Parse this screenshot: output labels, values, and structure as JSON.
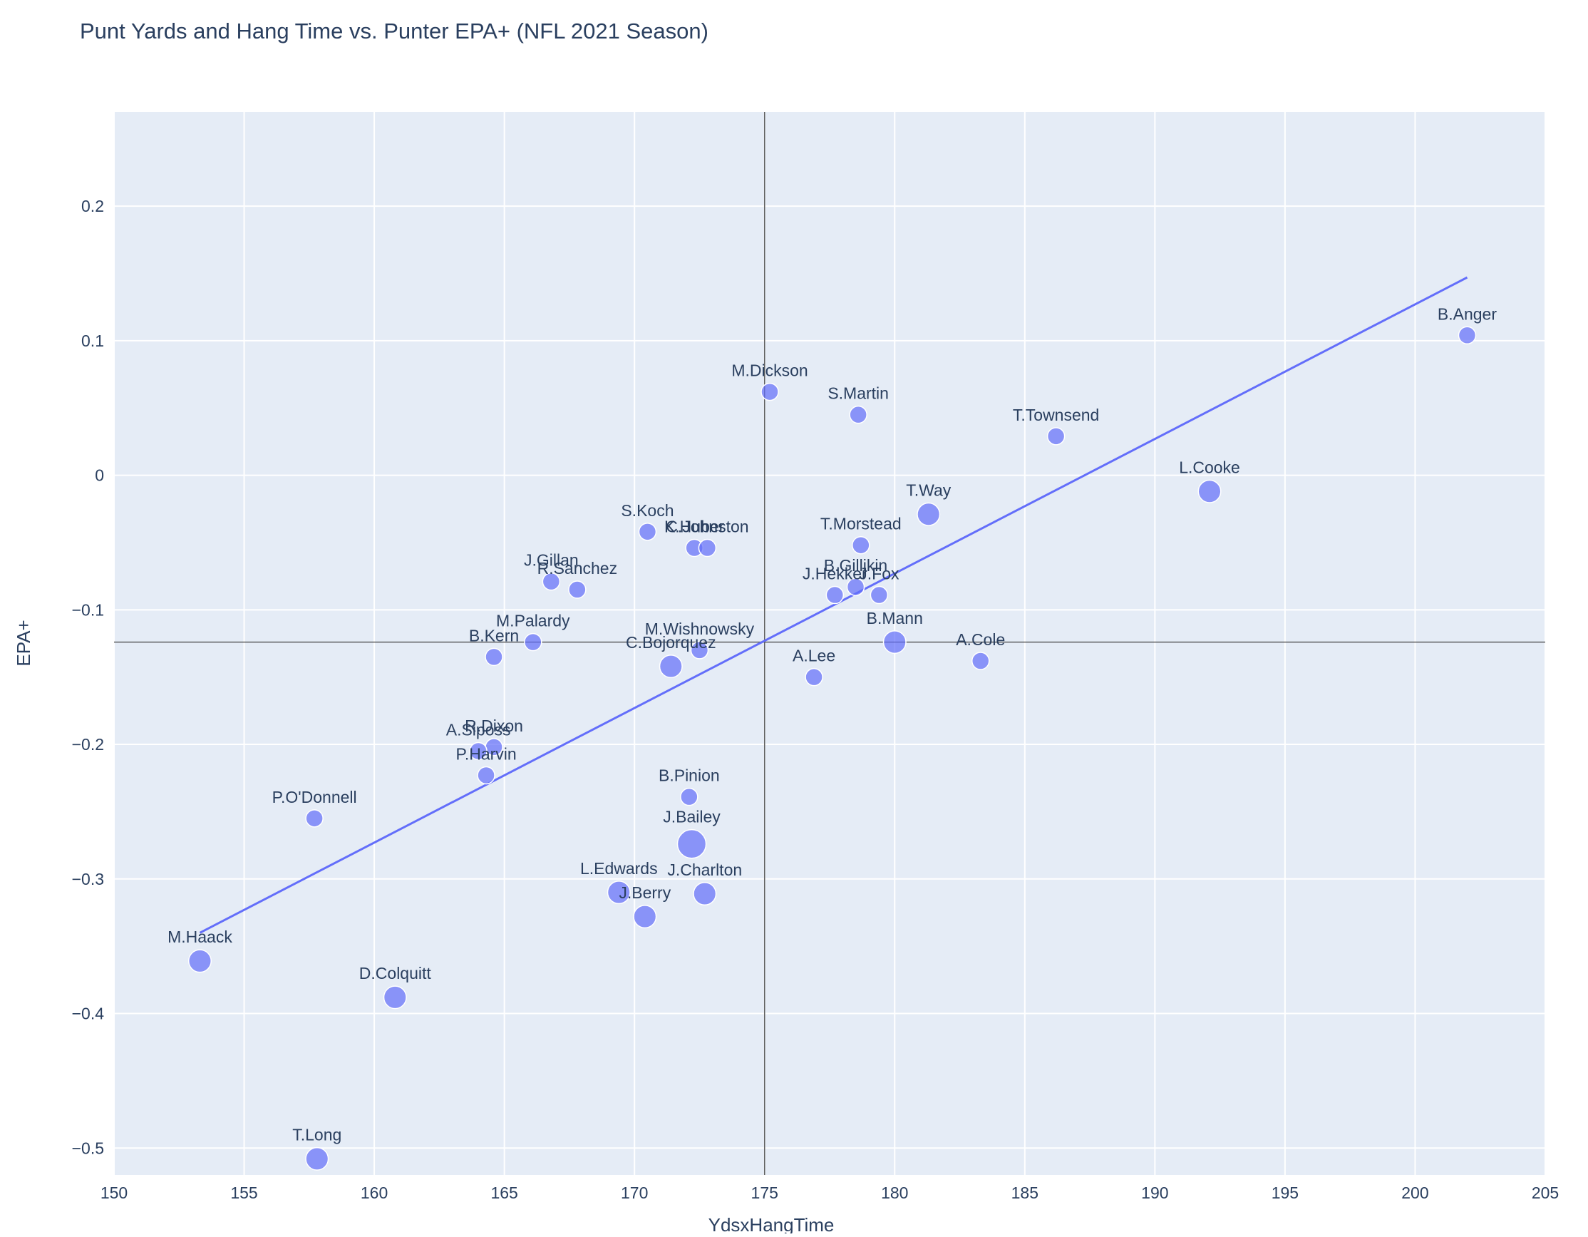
{
  "chart_data": {
    "type": "scatter",
    "title": "Punt Yards and Hang Time vs. Punter EPA+ (NFL 2021 Season)",
    "xlabel": "YdsxHangTime",
    "ylabel": "EPA+",
    "xlim": [
      150,
      205
    ],
    "ylim": [
      -0.52,
      0.27
    ],
    "x_ticks": [
      150,
      155,
      160,
      165,
      170,
      175,
      180,
      185,
      190,
      195,
      200,
      205
    ],
    "x_tick_labels": [
      "150",
      "155",
      "160",
      "165",
      "170",
      "175",
      "180",
      "185",
      "190",
      "195",
      "200",
      "205"
    ],
    "y_ticks": [
      -0.5,
      -0.4,
      -0.3,
      -0.2,
      -0.1,
      0,
      0.1,
      0.2
    ],
    "y_tick_labels": [
      "−0.5",
      "−0.4",
      "−0.3",
      "−0.2",
      "−0.1",
      "0",
      "0.1",
      "0.2"
    ],
    "reference_lines": {
      "x": 175,
      "y": -0.124
    },
    "trendline": {
      "x": [
        153.3,
        202.0
      ],
      "y": [
        -0.34,
        0.147
      ]
    },
    "colors": {
      "plot_bg": "#e5ecf6",
      "marker": "#636efa",
      "marker_opacity": 0.7,
      "marker_outline": "#ffffff",
      "trendline": "#636efa",
      "reference_line": "#444444",
      "text": "#2a3f5f",
      "grid": "#ffffff"
    },
    "points": [
      {
        "name": "B.Anger",
        "x": 202.0,
        "y": 0.104,
        "size": 1.0
      },
      {
        "name": "M.Dickson",
        "x": 175.2,
        "y": 0.062,
        "size": 1.0
      },
      {
        "name": "S.Martin",
        "x": 178.6,
        "y": 0.045,
        "size": 1.0
      },
      {
        "name": "T.Townsend",
        "x": 186.2,
        "y": 0.029,
        "size": 1.0
      },
      {
        "name": "L.Cooke",
        "x": 192.1,
        "y": -0.012,
        "size": 1.8
      },
      {
        "name": "T.Way",
        "x": 181.3,
        "y": -0.029,
        "size": 1.8
      },
      {
        "name": "S.Koch",
        "x": 170.5,
        "y": -0.042,
        "size": 1.0
      },
      {
        "name": "K.Huber",
        "x": 172.3,
        "y": -0.054,
        "size": 1.0
      },
      {
        "name": "C.Johnston",
        "x": 172.8,
        "y": -0.054,
        "size": 1.0
      },
      {
        "name": "T.Morstead",
        "x": 178.7,
        "y": -0.052,
        "size": 1.0
      },
      {
        "name": "J.Gillan",
        "x": 166.8,
        "y": -0.079,
        "size": 1.0
      },
      {
        "name": "R.Sanchez",
        "x": 167.8,
        "y": -0.085,
        "size": 1.0
      },
      {
        "name": "B.Gillikin",
        "x": 178.5,
        "y": -0.083,
        "size": 1.0
      },
      {
        "name": "J.Hekker",
        "x": 177.7,
        "y": -0.089,
        "size": 1.0
      },
      {
        "name": "J.Fox",
        "x": 179.4,
        "y": -0.089,
        "size": 1.0
      },
      {
        "name": "M.Palardy",
        "x": 166.1,
        "y": -0.124,
        "size": 1.0
      },
      {
        "name": "B.Mann",
        "x": 180.0,
        "y": -0.124,
        "size": 1.8
      },
      {
        "name": "B.Kern",
        "x": 164.6,
        "y": -0.135,
        "size": 1.0
      },
      {
        "name": "M.Wishnowsky",
        "x": 172.5,
        "y": -0.13,
        "size": 1.0
      },
      {
        "name": "C.Bojorquez",
        "x": 171.4,
        "y": -0.142,
        "size": 1.8
      },
      {
        "name": "A.Cole",
        "x": 183.3,
        "y": -0.138,
        "size": 1.0
      },
      {
        "name": "A.Lee",
        "x": 176.9,
        "y": -0.15,
        "size": 1.0
      },
      {
        "name": "R.Dixon",
        "x": 164.6,
        "y": -0.202,
        "size": 1.0
      },
      {
        "name": "A.Siposs",
        "x": 164.0,
        "y": -0.205,
        "size": 1.0
      },
      {
        "name": "P.Harvin",
        "x": 164.3,
        "y": -0.223,
        "size": 1.0
      },
      {
        "name": "B.Pinion",
        "x": 172.1,
        "y": -0.239,
        "size": 1.0
      },
      {
        "name": "P.O'Donnell",
        "x": 157.7,
        "y": -0.255,
        "size": 1.0
      },
      {
        "name": "J.Bailey",
        "x": 172.2,
        "y": -0.274,
        "size": 3.0
      },
      {
        "name": "L.Edwards",
        "x": 169.4,
        "y": -0.31,
        "size": 1.8
      },
      {
        "name": "J.Charlton",
        "x": 172.7,
        "y": -0.311,
        "size": 1.8
      },
      {
        "name": "J.Berry",
        "x": 170.4,
        "y": -0.328,
        "size": 1.8
      },
      {
        "name": "M.Haack",
        "x": 153.3,
        "y": -0.361,
        "size": 1.8
      },
      {
        "name": "D.Colquitt",
        "x": 160.8,
        "y": -0.388,
        "size": 1.8
      },
      {
        "name": "T.Long",
        "x": 157.8,
        "y": -0.508,
        "size": 1.8
      }
    ]
  }
}
